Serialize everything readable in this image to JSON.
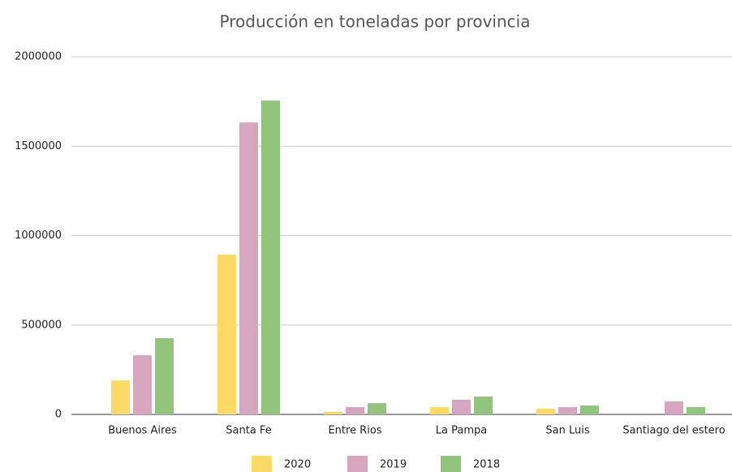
{
  "chart_data": {
    "type": "bar",
    "title": "Producción en toneladas por provincia",
    "categories": [
      "Buenos Aires",
      "Santa Fe",
      "Entre Rios",
      "La Pampa",
      "San Luis",
      "Santiago del estero"
    ],
    "series": [
      {
        "name": "2020",
        "color": "#ffd966",
        "values": [
          190000,
          893000,
          14000,
          41000,
          32000,
          0
        ]
      },
      {
        "name": "2019",
        "color": "#d5a6bd",
        "values": [
          331000,
          1633000,
          41000,
          82000,
          41000,
          73000
        ]
      },
      {
        "name": "2018",
        "color": "#93c47d",
        "values": [
          426000,
          1755000,
          63000,
          100000,
          50000,
          41000
        ]
      }
    ],
    "ylim": [
      0,
      2000000
    ],
    "yticks": [
      0,
      500000,
      1000000,
      1500000,
      2000000
    ],
    "grid": true,
    "legend": "bottom"
  }
}
